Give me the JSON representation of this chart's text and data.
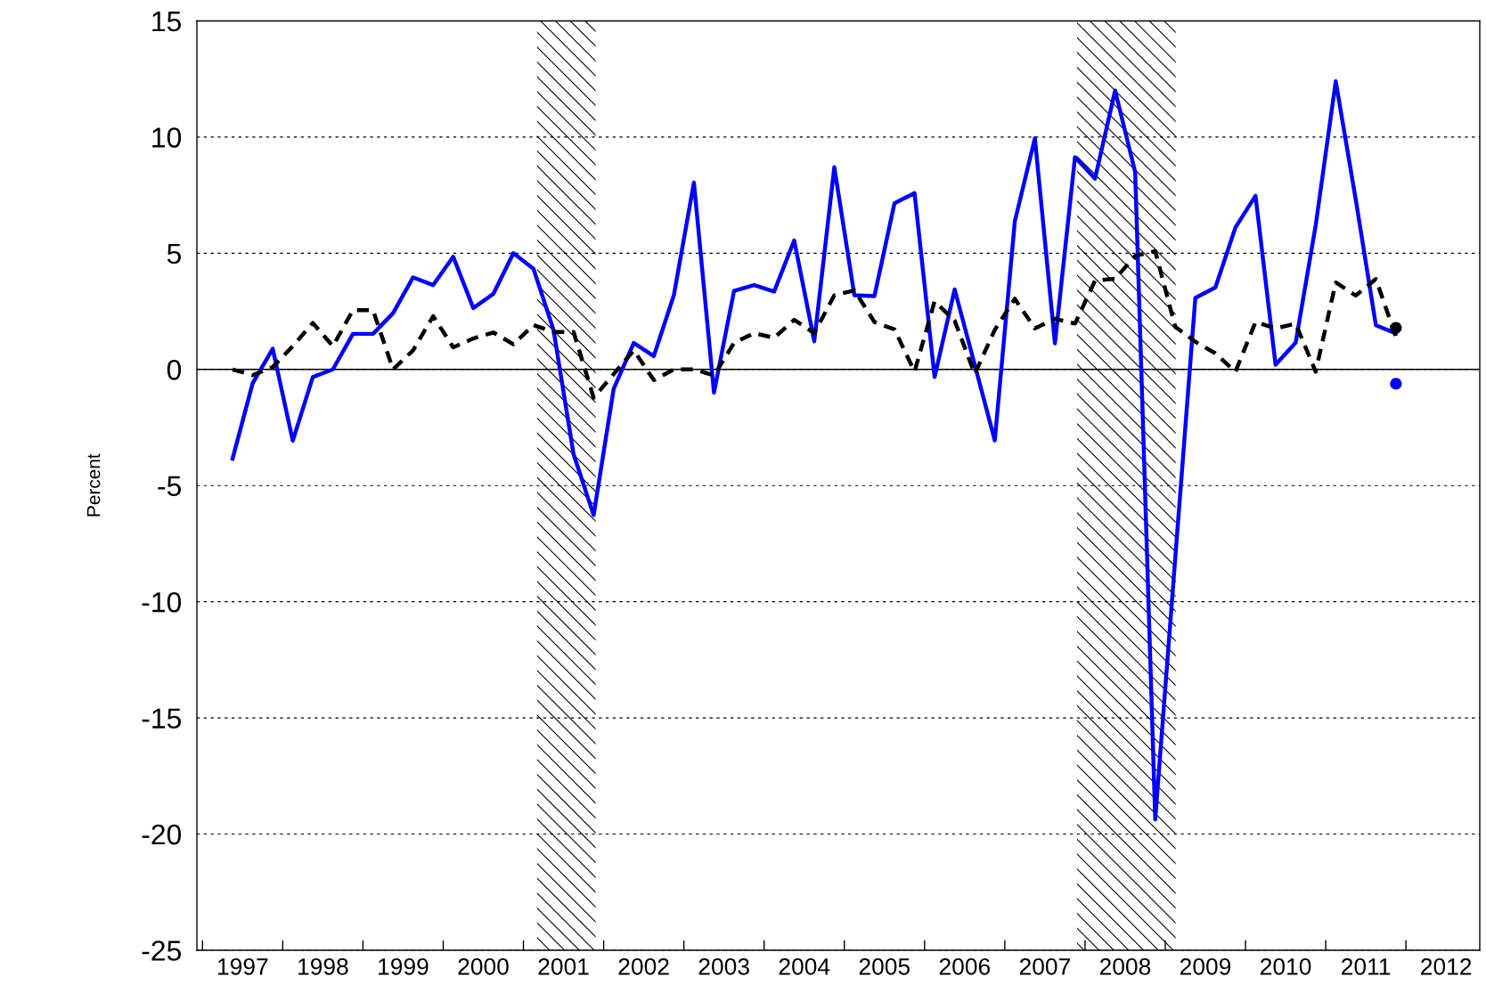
{
  "chart_data": {
    "type": "line",
    "ylabel": "Percent",
    "x": [
      1997.375,
      1997.625,
      1997.875,
      1998.125,
      1998.375,
      1998.625,
      1998.875,
      1999.125,
      1999.375,
      1999.625,
      1999.875,
      2000.125,
      2000.375,
      2000.625,
      2000.875,
      2001.125,
      2001.375,
      2001.625,
      2001.875,
      2002.125,
      2002.375,
      2002.625,
      2002.875,
      2003.125,
      2003.375,
      2003.625,
      2003.875,
      2004.125,
      2004.375,
      2004.625,
      2004.875,
      2005.125,
      2005.375,
      2005.625,
      2005.875,
      2006.125,
      2006.375,
      2006.625,
      2006.875,
      2007.125,
      2007.375,
      2007.625,
      2007.875,
      2008.125,
      2008.375,
      2008.625,
      2008.875,
      2009.125,
      2009.375,
      2009.625,
      2009.875,
      2010.125,
      2010.375,
      2010.625,
      2010.875,
      2011.125,
      2011.375,
      2011.625,
      2011.875
    ],
    "series": [
      {
        "color": "#0000ff",
        "line_style": "solid",
        "values": [
          -3.84,
          -0.6,
          0.89,
          -3.07,
          -0.33,
          0.0,
          1.53,
          1.53,
          2.42,
          3.96,
          3.63,
          4.85,
          2.64,
          3.25,
          5.0,
          4.33,
          1.7,
          -3.65,
          -6.27,
          -0.84,
          1.14,
          0.57,
          3.19,
          8.04,
          -1.0,
          3.38,
          3.63,
          3.35,
          5.55,
          1.21,
          8.7,
          3.19,
          3.15,
          7.15,
          7.59,
          -0.33,
          3.44,
          0.2,
          -3.06,
          6.37,
          9.95,
          1.12,
          9.13,
          8.21,
          12.0,
          8.49,
          -19.37,
          -8.1,
          3.08,
          3.53,
          6.11,
          7.47,
          0.2,
          1.15,
          6.2,
          12.4,
          7.3,
          1.9,
          1.55
        ]
      },
      {
        "color": "#000000",
        "line_style": "dashed",
        "values": [
          0.0,
          -0.25,
          0.1,
          1.0,
          2.0,
          1.0,
          2.55,
          2.55,
          0.0,
          0.82,
          2.29,
          0.95,
          1.33,
          1.59,
          1.08,
          1.91,
          1.61,
          1.61,
          -1.22,
          -0.2,
          0.82,
          -0.46,
          0.0,
          0.0,
          -0.26,
          1.14,
          1.56,
          1.36,
          2.13,
          1.56,
          3.19,
          3.4,
          2.04,
          1.72,
          -0.1,
          2.93,
          2.1,
          -0.2,
          1.7,
          3.04,
          1.76,
          2.18,
          1.97,
          3.82,
          3.9,
          4.88,
          5.09,
          1.83,
          1.19,
          0.69,
          -0.1,
          2.04,
          1.76,
          1.97,
          -0.1,
          3.74,
          3.18,
          3.89,
          1.4
        ]
      },
      {
        "type": "scatter",
        "color": "#000000",
        "marker": "circle",
        "x": [
          2011.875
        ],
        "values": [
          1.79
        ]
      },
      {
        "type": "scatter",
        "color": "#0000ff",
        "marker": "circle",
        "x": [
          2011.875
        ],
        "values": [
          -0.62
        ]
      }
    ],
    "xlim": [
      1996.93,
      2012.92
    ],
    "xticks": [
      {
        "value": 1997,
        "label": null
      },
      {
        "value": 1998,
        "label": null
      },
      {
        "value": 1999,
        "label": null
      },
      {
        "value": 2000,
        "label": null
      },
      {
        "value": 2001,
        "label": null
      },
      {
        "value": 2002,
        "label": null
      },
      {
        "value": 2003,
        "label": null
      },
      {
        "value": 2004,
        "label": null
      },
      {
        "value": 2005,
        "label": null
      },
      {
        "value": 2006,
        "label": null
      },
      {
        "value": 2007,
        "label": null
      },
      {
        "value": 2008,
        "label": null
      },
      {
        "value": 2009,
        "label": null
      },
      {
        "value": 2010,
        "label": null
      },
      {
        "value": 2011,
        "label": null
      },
      {
        "value": 2012,
        "label": null
      },
      {
        "value": 1997.5,
        "label": "1997"
      },
      {
        "value": 1998.5,
        "label": "1998"
      },
      {
        "value": 1999.5,
        "label": "1999"
      },
      {
        "value": 2000.5,
        "label": "2000"
      },
      {
        "value": 2001.5,
        "label": "2001"
      },
      {
        "value": 2002.5,
        "label": "2002"
      },
      {
        "value": 2003.5,
        "label": "2003"
      },
      {
        "value": 2004.5,
        "label": "2004"
      },
      {
        "value": 2005.5,
        "label": "2005"
      },
      {
        "value": 2006.5,
        "label": "2006"
      },
      {
        "value": 2007.5,
        "label": "2007"
      },
      {
        "value": 2008.5,
        "label": "2008"
      },
      {
        "value": 2009.5,
        "label": "2009"
      },
      {
        "value": 2010.5,
        "label": "2010"
      },
      {
        "value": 2011.5,
        "label": "2011"
      },
      {
        "value": 2012.5,
        "label": "2012"
      }
    ],
    "ylim": [
      -25,
      15
    ],
    "yticks": [
      -25,
      -20,
      -15,
      -10,
      -5,
      0,
      5,
      10,
      15
    ],
    "grid": "y",
    "ref_lines": [
      {
        "axis": "y",
        "value": 0,
        "color": "#000000",
        "line_style": "solid"
      }
    ],
    "bands": [
      {
        "axis": "x",
        "from": 2001.17,
        "to": 2001.9,
        "color": "#000000"
      },
      {
        "axis": "x",
        "from": 2007.9,
        "to": 2009.13,
        "color": "#000000"
      }
    ]
  }
}
